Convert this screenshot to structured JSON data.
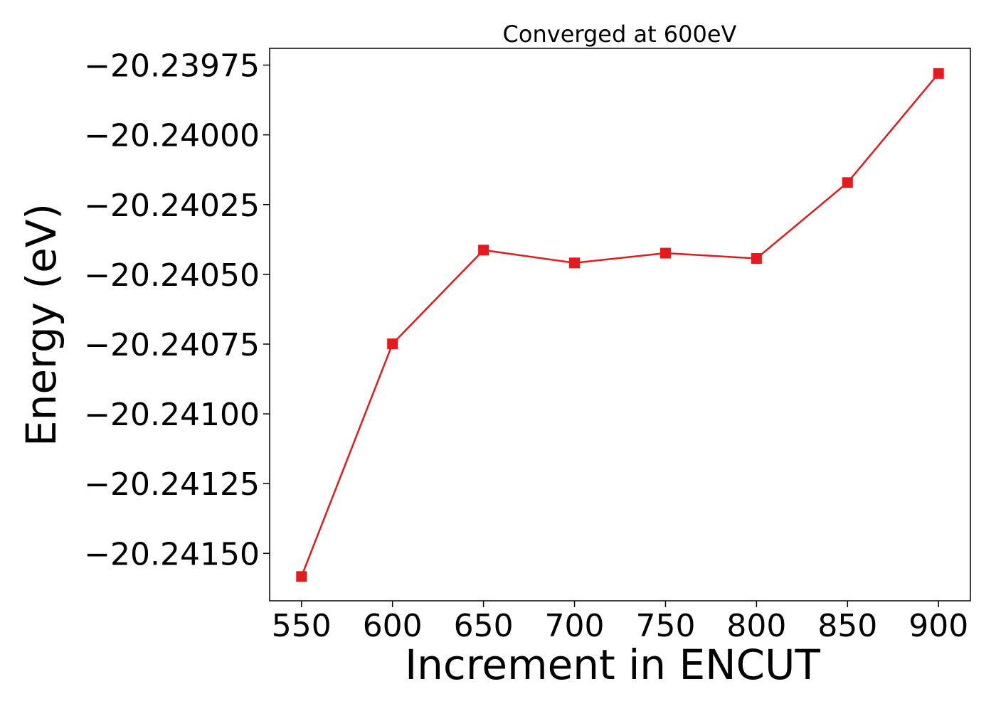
{
  "chart_data": {
    "type": "line",
    "title": "Converged at 600eV",
    "xlabel": "Increment in ENCUT",
    "ylabel": "Energy (eV)",
    "x": [
      550,
      600,
      650,
      700,
      750,
      800,
      850,
      900
    ],
    "x_ticks": [
      550,
      600,
      650,
      700,
      750,
      800,
      850,
      900
    ],
    "x_tick_labels": [
      "550",
      "600",
      "650",
      "700",
      "750",
      "800",
      "850",
      "900"
    ],
    "y_ticks": [
      -20.2415,
      -20.24125,
      -20.241,
      -20.24075,
      -20.2405,
      -20.24025,
      -20.24,
      -20.23975
    ],
    "y_tick_labels": [
      "−20.24150",
      "−20.24125",
      "−20.24100",
      "−20.24075",
      "−20.24050",
      "−20.24025",
      "−20.24000",
      "−20.23975"
    ],
    "xlim": [
      532.5,
      917.5
    ],
    "ylim": [
      -20.24167,
      -20.23969
    ],
    "series": [
      {
        "values": [
          -20.241583,
          -20.240749,
          -20.240413,
          -20.240459,
          -20.240424,
          -20.240443,
          -20.240171,
          -20.23978
        ],
        "color": "#e41a1c",
        "marker": "square"
      }
    ],
    "grid": false,
    "legend": "none"
  }
}
